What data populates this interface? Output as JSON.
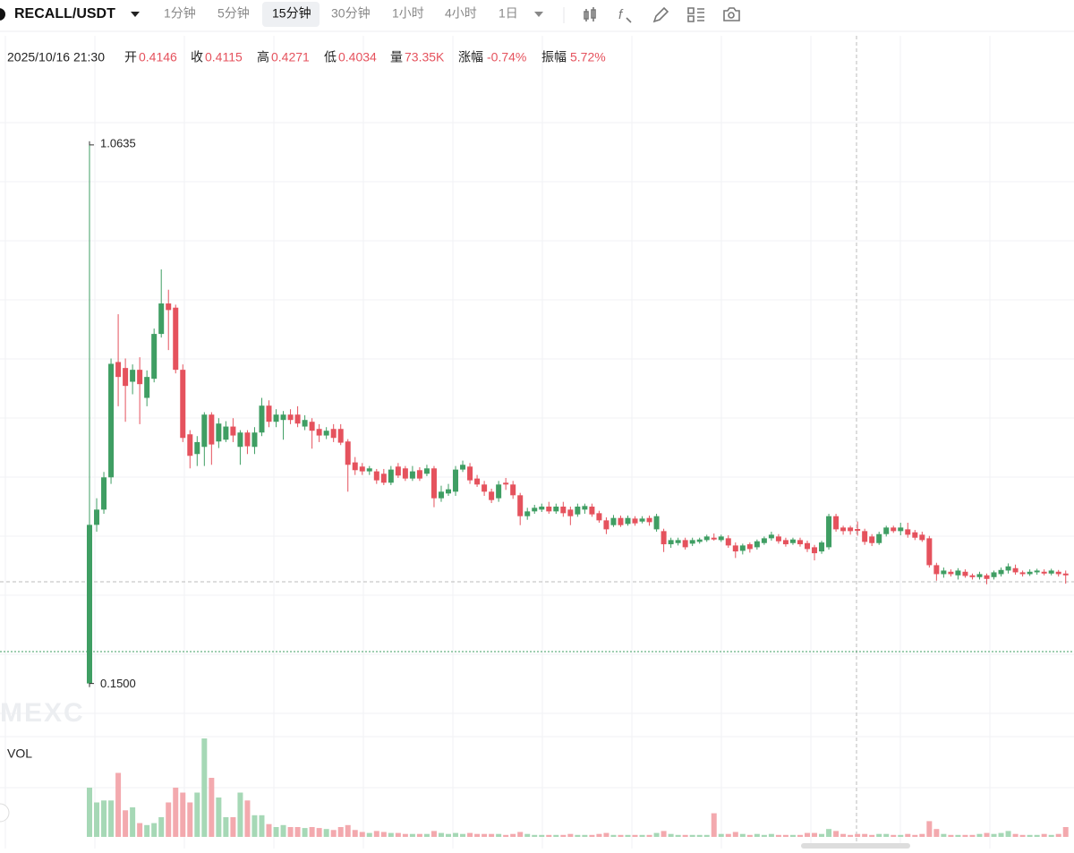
{
  "header": {
    "symbol": "RECALL/USDT",
    "intervals": [
      "1分钟",
      "5分钟",
      "15分钟",
      "30分钟",
      "1小时",
      "4小时",
      "1日"
    ],
    "active_interval": 2
  },
  "info": {
    "time": "2025/10/16 21:30",
    "fields": [
      {
        "label": "开",
        "value": "0.4146"
      },
      {
        "label": "收",
        "value": "0.4115"
      },
      {
        "label": "高",
        "value": "0.4271"
      },
      {
        "label": "低",
        "value": "0.4034"
      },
      {
        "label": "量",
        "value": "73.35K"
      },
      {
        "label": "涨幅",
        "value": "-0.74%"
      },
      {
        "label": "振幅",
        "value": "5.72%"
      }
    ]
  },
  "watermark": "MEXC",
  "chart_data": [
    {
      "type": "candlestick",
      "up_color": "#3f9e63",
      "down_color": "#e5525d",
      "ylim": [
        0.07,
        1.24
      ],
      "annotations": [
        {
          "value": 1.0635,
          "label": "1.0635"
        },
        {
          "value": 0.15,
          "label": "0.1500"
        }
      ],
      "open": [
        0.156,
        0.4215,
        0.447,
        0.501,
        0.694,
        0.684,
        0.661,
        0.681,
        0.634,
        0.666,
        0.741,
        0.792,
        0.785,
        0.681,
        0.573,
        0.54,
        0.552,
        0.606,
        0.561,
        0.564,
        0.586,
        0.552,
        0.576,
        0.552,
        0.576,
        0.621,
        0.594,
        0.597,
        0.606,
        0.606,
        0.586,
        0.594,
        0.582,
        0.571,
        0.582,
        0.582,
        0.561,
        0.526,
        0.519,
        0.511,
        0.511,
        0.507,
        0.492,
        0.519,
        0.516,
        0.499,
        0.513,
        0.507,
        0.516,
        0.466,
        0.474,
        0.477,
        0.514,
        0.519,
        0.499,
        0.489,
        0.477,
        0.466,
        0.492,
        0.489,
        0.471,
        0.436,
        0.444,
        0.447,
        0.452,
        0.444,
        0.452,
        0.447,
        0.439,
        0.447,
        0.452,
        0.441,
        0.429,
        0.421,
        0.433,
        0.423,
        0.432,
        0.427,
        0.433,
        0.414,
        0.411,
        0.389,
        0.391,
        0.396,
        0.39,
        0.393,
        0.396,
        0.4,
        0.396,
        0.399,
        0.387,
        0.378,
        0.389,
        0.384,
        0.391,
        0.399,
        0.402,
        0.396,
        0.391,
        0.396,
        0.391,
        0.384,
        0.377,
        0.384,
        0.436,
        0.417,
        0.417,
        0.4146,
        0.411,
        0.402,
        0.391,
        0.406,
        0.417,
        0.411,
        0.414,
        0.409,
        0.405,
        0.399,
        0.354,
        0.339,
        0.343,
        0.337,
        0.343,
        0.337,
        0.334,
        0.337,
        0.334,
        0.339,
        0.345,
        0.349,
        0.342,
        0.339,
        0.342,
        0.343,
        0.34,
        0.343,
        0.34
      ],
      "high": [
        1.0635,
        0.466,
        0.51,
        0.7,
        0.774,
        0.7,
        0.69,
        0.702,
        0.68,
        0.75,
        0.849,
        0.815,
        0.79,
        0.69,
        0.58,
        0.57,
        0.61,
        0.61,
        0.6,
        0.595,
        0.6,
        0.58,
        0.58,
        0.585,
        0.634,
        0.63,
        0.615,
        0.612,
        0.615,
        0.62,
        0.605,
        0.6,
        0.59,
        0.585,
        0.59,
        0.59,
        0.565,
        0.535,
        0.525,
        0.52,
        0.515,
        0.515,
        0.52,
        0.525,
        0.52,
        0.52,
        0.518,
        0.522,
        0.52,
        0.487,
        0.49,
        0.52,
        0.529,
        0.525,
        0.505,
        0.495,
        0.482,
        0.495,
        0.5,
        0.495,
        0.475,
        0.45,
        0.455,
        0.457,
        0.46,
        0.457,
        0.46,
        0.452,
        0.457,
        0.457,
        0.457,
        0.445,
        0.434,
        0.438,
        0.437,
        0.437,
        0.436,
        0.436,
        0.437,
        0.44,
        0.415,
        0.4,
        0.4,
        0.4,
        0.4,
        0.4,
        0.405,
        0.407,
        0.405,
        0.404,
        0.392,
        0.39,
        0.392,
        0.397,
        0.402,
        0.41,
        0.406,
        0.4,
        0.4,
        0.4,
        0.395,
        0.388,
        0.395,
        0.44,
        0.44,
        0.42,
        0.42,
        0.4271,
        0.415,
        0.406,
        0.41,
        0.42,
        0.42,
        0.425,
        0.425,
        0.413,
        0.41,
        0.403,
        0.358,
        0.35,
        0.347,
        0.349,
        0.347,
        0.34,
        0.343,
        0.34,
        0.345,
        0.35,
        0.357,
        0.355,
        0.345,
        0.347,
        0.348,
        0.347,
        0.348,
        0.346,
        0.345
      ],
      "low": [
        0.15,
        0.41,
        0.44,
        0.49,
        0.62,
        0.594,
        0.64,
        0.59,
        0.62,
        0.66,
        0.735,
        0.714,
        0.675,
        0.56,
        0.516,
        0.52,
        0.52,
        0.522,
        0.55,
        0.56,
        0.56,
        0.522,
        0.54,
        0.54,
        0.57,
        0.585,
        0.585,
        0.564,
        0.59,
        0.585,
        0.58,
        0.549,
        0.56,
        0.565,
        0.56,
        0.555,
        0.477,
        0.505,
        0.505,
        0.505,
        0.49,
        0.488,
        0.488,
        0.5,
        0.495,
        0.495,
        0.495,
        0.503,
        0.451,
        0.46,
        0.47,
        0.47,
        0.51,
        0.49,
        0.485,
        0.47,
        0.458,
        0.46,
        0.48,
        0.465,
        0.421,
        0.43,
        0.44,
        0.443,
        0.44,
        0.44,
        0.435,
        0.421,
        0.435,
        0.44,
        0.435,
        0.425,
        0.406,
        0.418,
        0.418,
        0.42,
        0.42,
        0.424,
        0.42,
        0.41,
        0.376,
        0.383,
        0.387,
        0.38,
        0.386,
        0.39,
        0.393,
        0.395,
        0.393,
        0.383,
        0.366,
        0.372,
        0.375,
        0.38,
        0.388,
        0.395,
        0.39,
        0.385,
        0.388,
        0.385,
        0.376,
        0.362,
        0.373,
        0.38,
        0.41,
        0.405,
        0.405,
        0.4034,
        0.388,
        0.386,
        0.388,
        0.402,
        0.408,
        0.404,
        0.4,
        0.396,
        0.393,
        0.35,
        0.328,
        0.333,
        0.335,
        0.33,
        0.333,
        0.33,
        0.33,
        0.322,
        0.33,
        0.335,
        0.34,
        0.338,
        0.335,
        0.336,
        0.338,
        0.337,
        0.337,
        0.335,
        0.323
      ],
      "close": [
        0.4215,
        0.447,
        0.501,
        0.691,
        0.669,
        0.654,
        0.681,
        0.657,
        0.669,
        0.741,
        0.792,
        0.781,
        0.681,
        0.567,
        0.537,
        0.56,
        0.606,
        0.556,
        0.591,
        0.586,
        0.571,
        0.576,
        0.553,
        0.576,
        0.621,
        0.594,
        0.606,
        0.606,
        0.597,
        0.591,
        0.597,
        0.579,
        0.571,
        0.579,
        0.567,
        0.559,
        0.522,
        0.513,
        0.511,
        0.516,
        0.496,
        0.492,
        0.514,
        0.504,
        0.499,
        0.511,
        0.499,
        0.516,
        0.466,
        0.477,
        0.481,
        0.514,
        0.522,
        0.496,
        0.489,
        0.477,
        0.463,
        0.489,
        0.489,
        0.471,
        0.436,
        0.444,
        0.45,
        0.452,
        0.444,
        0.452,
        0.441,
        0.436,
        0.452,
        0.453,
        0.439,
        0.429,
        0.414,
        0.433,
        0.421,
        0.433,
        0.424,
        0.432,
        0.426,
        0.436,
        0.389,
        0.396,
        0.396,
        0.384,
        0.396,
        0.397,
        0.402,
        0.397,
        0.402,
        0.387,
        0.377,
        0.387,
        0.381,
        0.394,
        0.399,
        0.405,
        0.394,
        0.389,
        0.397,
        0.389,
        0.381,
        0.374,
        0.392,
        0.436,
        0.414,
        0.411,
        0.411,
        0.4115,
        0.393,
        0.391,
        0.406,
        0.417,
        0.411,
        0.417,
        0.405,
        0.4,
        0.396,
        0.354,
        0.339,
        0.345,
        0.339,
        0.345,
        0.336,
        0.334,
        0.339,
        0.331,
        0.342,
        0.346,
        0.352,
        0.342,
        0.339,
        0.343,
        0.345,
        0.34,
        0.345,
        0.339,
        0.337
      ]
    },
    {
      "type": "bar",
      "title": "VOL",
      "up_color": "#a6d8b6",
      "down_color": "#f3a9ae",
      "ylim": [
        0,
        100
      ],
      "values": [
        50,
        35,
        37,
        37,
        65,
        27,
        30,
        14,
        12,
        14,
        20,
        35,
        50,
        45,
        35,
        45,
        100,
        60,
        40,
        20,
        20,
        45,
        37,
        22,
        22,
        13,
        10,
        12,
        10,
        10,
        9,
        10,
        9,
        8,
        7,
        10,
        12,
        7,
        5,
        4,
        6,
        5,
        4,
        4,
        3,
        3,
        3,
        3,
        6,
        4,
        3,
        4,
        3,
        4,
        3,
        3,
        3,
        3,
        2,
        3,
        5,
        3,
        2,
        2,
        2,
        2,
        2,
        3,
        2,
        2,
        2,
        3,
        4,
        2,
        2,
        2,
        2,
        2,
        2,
        4,
        6,
        3,
        2,
        2,
        2,
        2,
        2,
        24,
        3,
        3,
        5,
        3,
        2,
        3,
        2,
        3,
        2,
        2,
        2,
        2,
        4,
        4,
        3,
        8,
        6,
        3,
        2,
        3,
        3,
        2,
        3,
        3,
        2,
        2,
        3,
        2,
        3,
        16,
        8,
        3,
        2,
        2,
        2,
        2,
        3,
        4,
        3,
        4,
        6,
        3,
        2,
        2,
        2,
        3,
        2,
        3,
        10
      ]
    }
  ]
}
